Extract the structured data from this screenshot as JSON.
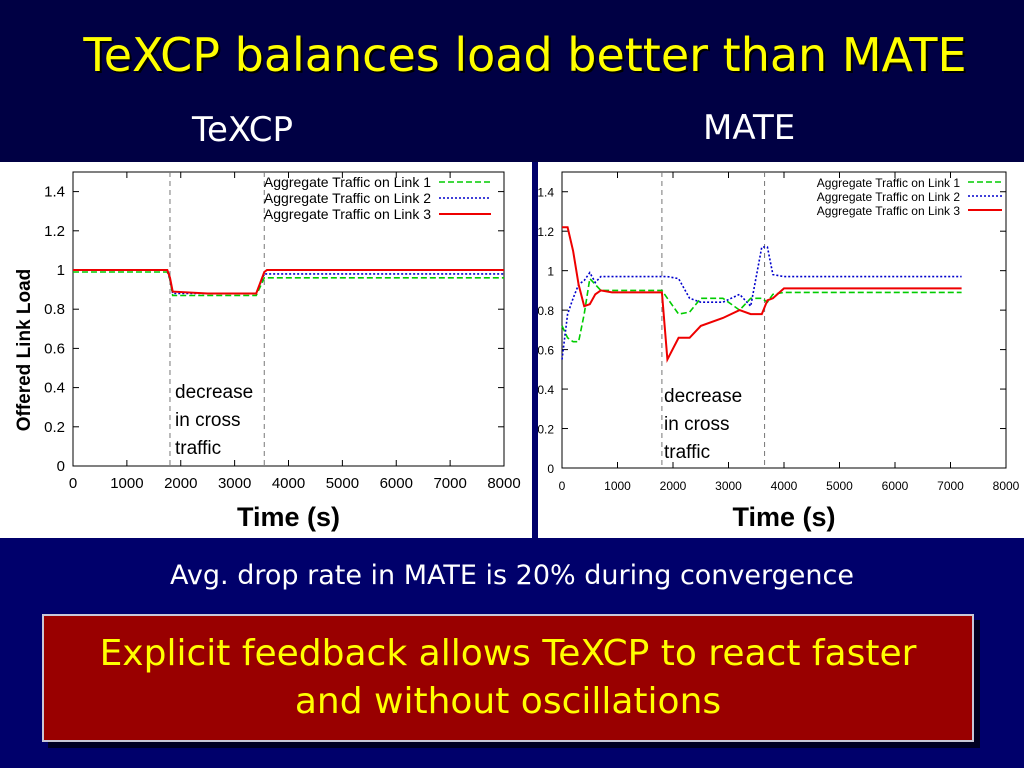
{
  "slide": {
    "title": "TeXCP balances load better than MATE",
    "caption": "Avg. drop rate in MATE is 20% during convergence",
    "callout": "Explicit feedback allows TeXCP to react faster and without oscillations"
  },
  "colors": {
    "link1": "#00cc00",
    "link2": "#0000cc",
    "link3": "#ee0000",
    "title": "#ffff00",
    "background": "#00006b",
    "callout_bg": "#990000"
  },
  "chart_data": [
    {
      "type": "line",
      "title": "TeXCP",
      "xlabel": "Time (s)",
      "ylabel": "Offered Link Load",
      "xlim": [
        0,
        8000
      ],
      "ylim": [
        0,
        1.5
      ],
      "xticks": [
        "0",
        "1000",
        "2000",
        "3000",
        "4000",
        "5000",
        "6000",
        "7000",
        "8000"
      ],
      "yticks": [
        "0",
        "0.2",
        "0.4",
        "0.6",
        "0.8",
        "1",
        "1.2",
        "1.4"
      ],
      "legend_position": "top-right",
      "annotation": [
        "decrease",
        "in cross",
        "traffic"
      ],
      "vlines": [
        1800,
        3550
      ],
      "series": [
        {
          "name": "Aggregate Traffic on Link 1",
          "style": "dashed",
          "x": [
            0,
            1750,
            1800,
            1850,
            2500,
            3400,
            3550,
            3600,
            8000
          ],
          "y": [
            0.99,
            0.99,
            0.95,
            0.87,
            0.87,
            0.87,
            0.96,
            0.96,
            0.96
          ]
        },
        {
          "name": "Aggregate Traffic on Link 2",
          "style": "dotted",
          "x": [
            0,
            1750,
            1800,
            1850,
            2500,
            3400,
            3550,
            3600,
            8000
          ],
          "y": [
            1.0,
            1.0,
            0.95,
            0.88,
            0.88,
            0.88,
            0.98,
            0.98,
            0.98
          ]
        },
        {
          "name": "Aggregate Traffic on Link 3",
          "style": "solid",
          "x": [
            0,
            1750,
            1800,
            1850,
            2500,
            3400,
            3550,
            3600,
            8000
          ],
          "y": [
            1.0,
            1.0,
            0.96,
            0.89,
            0.88,
            0.88,
            0.99,
            1.0,
            1.0
          ]
        }
      ]
    },
    {
      "type": "line",
      "title": "MATE",
      "xlabel": "Time (s)",
      "ylabel": "",
      "xlim": [
        0,
        8000
      ],
      "ylim": [
        0,
        1.5
      ],
      "xticks": [
        "0",
        "1000",
        "2000",
        "3000",
        "4000",
        "5000",
        "6000",
        "7000",
        "8000"
      ],
      "yticks": [
        "0",
        "0.2",
        "0.4",
        "0.6",
        "0.8",
        "1",
        "1.2",
        "1.4"
      ],
      "legend_position": "top-right",
      "annotation": [
        "decrease",
        "in cross",
        "traffic"
      ],
      "vlines": [
        1800,
        3650
      ],
      "series": [
        {
          "name": "Aggregate Traffic on Link 1",
          "style": "dashed",
          "x": [
            0,
            100,
            200,
            300,
            400,
            500,
            600,
            700,
            900,
            1800,
            1900,
            2100,
            2300,
            2500,
            2900,
            3200,
            3400,
            3600,
            3700,
            3800,
            4000,
            7200
          ],
          "y": [
            0.72,
            0.66,
            0.64,
            0.64,
            0.78,
            0.96,
            0.93,
            0.9,
            0.9,
            0.9,
            0.86,
            0.78,
            0.79,
            0.86,
            0.86,
            0.8,
            0.86,
            0.86,
            0.84,
            0.88,
            0.89,
            0.89
          ]
        },
        {
          "name": "Aggregate Traffic on Link 2",
          "style": "dotted",
          "x": [
            0,
            100,
            200,
            300,
            400,
            500,
            600,
            700,
            900,
            1800,
            1900,
            2100,
            2300,
            2500,
            2900,
            3200,
            3400,
            3600,
            3700,
            3800,
            4000,
            7200
          ],
          "y": [
            0.55,
            0.78,
            0.86,
            0.93,
            0.95,
            0.99,
            0.94,
            0.97,
            0.97,
            0.97,
            0.97,
            0.96,
            0.86,
            0.84,
            0.84,
            0.88,
            0.82,
            1.12,
            1.12,
            0.98,
            0.97,
            0.97
          ]
        },
        {
          "name": "Aggregate Traffic on Link 3",
          "style": "solid",
          "x": [
            0,
            100,
            200,
            300,
            400,
            500,
            600,
            700,
            900,
            1800,
            1900,
            2100,
            2300,
            2500,
            2900,
            3200,
            3400,
            3600,
            3700,
            3800,
            4000,
            7200
          ],
          "y": [
            1.22,
            1.22,
            1.1,
            0.93,
            0.82,
            0.83,
            0.88,
            0.9,
            0.89,
            0.89,
            0.55,
            0.66,
            0.66,
            0.72,
            0.76,
            0.8,
            0.78,
            0.78,
            0.85,
            0.86,
            0.91,
            0.91
          ]
        }
      ]
    }
  ]
}
